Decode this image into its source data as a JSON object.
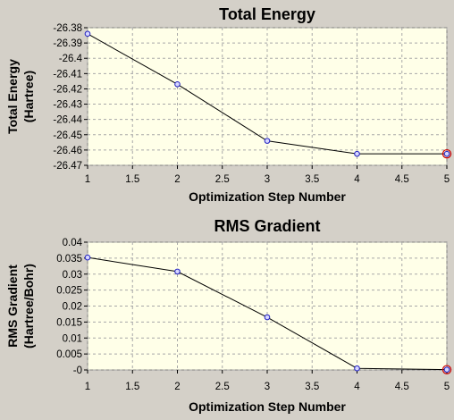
{
  "chart_data": [
    {
      "type": "line",
      "title": "Total Energy",
      "xlabel": "Optimization Step Number",
      "ylabel_line1": "Total Energy",
      "ylabel_line2": "(Hartree)",
      "x": [
        1,
        2,
        3,
        4,
        5
      ],
      "values": [
        -26.384,
        -26.417,
        -26.454,
        -26.4625,
        -26.4625
      ],
      "xlim": [
        1,
        5
      ],
      "ylim": [
        -26.47,
        -26.38
      ],
      "xticks": [
        1,
        1.5,
        2,
        2.5,
        3,
        3.5,
        4,
        4.5,
        5
      ],
      "xtick_labels": [
        "1",
        "1.5",
        "2",
        "2.5",
        "3",
        "3.5",
        "4",
        "4.5",
        "5"
      ],
      "yticks": [
        -26.38,
        -26.39,
        -26.4,
        -26.41,
        -26.42,
        -26.43,
        -26.44,
        -26.45,
        -26.46,
        -26.47
      ],
      "ytick_labels": [
        "-26.38",
        "-26.39",
        "-26.4",
        "-26.41",
        "-26.42",
        "-26.43",
        "-26.44",
        "-26.45",
        "-26.46",
        "-26.47"
      ],
      "grid": true,
      "selected_index": 4,
      "colors": {
        "line": "#000000",
        "marker_fill": "#d6d6ff",
        "marker_edge": "#2020c0",
        "selected_ring": "#cc0000",
        "plot_bg": "#ffffe8",
        "panel_bg": "#d4d0c8"
      }
    },
    {
      "type": "line",
      "title": "RMS Gradient",
      "xlabel": "Optimization Step Number",
      "ylabel_line1": "RMS Gradient",
      "ylabel_line2": "(Hartree/Bohr)",
      "x": [
        1,
        2,
        3,
        4,
        5
      ],
      "values": [
        0.0352,
        0.0308,
        0.0165,
        0.0005,
        0.0001
      ],
      "xlim": [
        1,
        5
      ],
      "ylim": [
        0,
        0.04
      ],
      "xticks": [
        1,
        1.5,
        2,
        2.5,
        3,
        3.5,
        4,
        4.5,
        5
      ],
      "xtick_labels": [
        "1",
        "1.5",
        "2",
        "2.5",
        "3",
        "3.5",
        "4",
        "4.5",
        "5"
      ],
      "yticks": [
        0.04,
        0.035,
        0.03,
        0.025,
        0.02,
        0.015,
        0.01,
        0.005,
        0
      ],
      "ytick_labels": [
        "0.04",
        "0.035",
        "0.03",
        "0.025",
        "0.02",
        "0.015",
        "0.01",
        "0.005",
        "-0"
      ],
      "grid": true,
      "selected_index": 4,
      "colors": {
        "line": "#000000",
        "marker_fill": "#d6d6ff",
        "marker_edge": "#2020c0",
        "selected_ring": "#cc0000",
        "plot_bg": "#ffffe8",
        "panel_bg": "#d4d0c8"
      }
    }
  ]
}
